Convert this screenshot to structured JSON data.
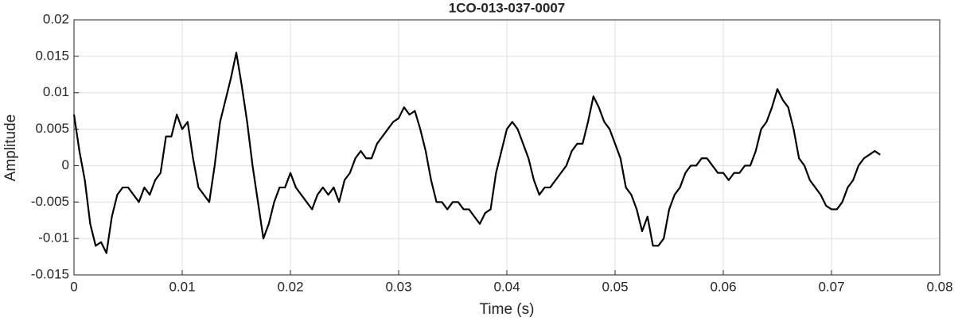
{
  "chart_data": {
    "type": "line",
    "title": "1CO-013-037-0007",
    "xlabel": "Time (s)",
    "ylabel": "Amplitude",
    "x": [
      0,
      0.0005,
      0.001,
      0.0015,
      0.002,
      0.0025,
      0.003,
      0.0035,
      0.004,
      0.0045,
      0.005,
      0.0055,
      0.006,
      0.0065,
      0.007,
      0.0075,
      0.008,
      0.0085,
      0.009,
      0.0095,
      0.01,
      0.0105,
      0.011,
      0.0115,
      0.012,
      0.0125,
      0.013,
      0.0135,
      0.014,
      0.0145,
      0.015,
      0.0155,
      0.016,
      0.0165,
      0.017,
      0.0175,
      0.018,
      0.0185,
      0.019,
      0.0195,
      0.02,
      0.0205,
      0.021,
      0.0215,
      0.022,
      0.0225,
      0.023,
      0.0235,
      0.024,
      0.0245,
      0.025,
      0.0255,
      0.026,
      0.0265,
      0.027,
      0.0275,
      0.028,
      0.0285,
      0.029,
      0.0295,
      0.03,
      0.0305,
      0.031,
      0.0315,
      0.032,
      0.0325,
      0.033,
      0.0335,
      0.034,
      0.0345,
      0.035,
      0.0355,
      0.036,
      0.0365,
      0.037,
      0.0375,
      0.038,
      0.0385,
      0.039,
      0.0395,
      0.04,
      0.0405,
      0.041,
      0.0415,
      0.042,
      0.0425,
      0.043,
      0.0435,
      0.044,
      0.0445,
      0.045,
      0.0455,
      0.046,
      0.0465,
      0.047,
      0.0475,
      0.048,
      0.0485,
      0.049,
      0.0495,
      0.05,
      0.0505,
      0.051,
      0.0515,
      0.052,
      0.0525,
      0.053,
      0.0535,
      0.054,
      0.0545,
      0.055,
      0.0555,
      0.056,
      0.0565,
      0.057,
      0.0575,
      0.058,
      0.0585,
      0.059,
      0.0595,
      0.06,
      0.0605,
      0.061,
      0.0615,
      0.062,
      0.0625,
      0.063,
      0.0635,
      0.064,
      0.0645,
      0.065,
      0.0655,
      0.066,
      0.0665,
      0.067,
      0.0675,
      0.068,
      0.0685,
      0.069,
      0.0695,
      0.07,
      0.0705,
      0.071,
      0.0715,
      0.072,
      0.0725,
      0.073,
      0.0735,
      0.074,
      0.0745
    ],
    "series": [
      {
        "color": "#000000",
        "values": [
          0.007,
          0.002,
          -0.002,
          -0.008,
          -0.011,
          -0.0105,
          -0.012,
          -0.007,
          -0.004,
          -0.003,
          -0.003,
          -0.004,
          -0.005,
          -0.003,
          -0.004,
          -0.002,
          -0.001,
          0.004,
          0.004,
          0.007,
          0.005,
          0.006,
          0.001,
          -0.003,
          -0.004,
          -0.005,
          0,
          0.006,
          0.009,
          0.012,
          0.0155,
          0.011,
          0.006,
          0,
          -0.005,
          -0.01,
          -0.008,
          -0.005,
          -0.003,
          -0.003,
          -0.001,
          -0.003,
          -0.004,
          -0.005,
          -0.006,
          -0.004,
          -0.003,
          -0.004,
          -0.003,
          -0.005,
          -0.002,
          -0.001,
          0.001,
          0.002,
          0.001,
          0.001,
          0.003,
          0.004,
          0.005,
          0.006,
          0.0065,
          0.008,
          0.007,
          0.0075,
          0.005,
          0.002,
          -0.002,
          -0.005,
          -0.005,
          -0.006,
          -0.005,
          -0.005,
          -0.006,
          -0.006,
          -0.007,
          -0.008,
          -0.0065,
          -0.006,
          -0.001,
          0.002,
          0.005,
          0.006,
          0.005,
          0.003,
          0.001,
          -0.002,
          -0.004,
          -0.003,
          -0.003,
          -0.002,
          -0.001,
          0,
          0.002,
          0.003,
          0.003,
          0.006,
          0.0095,
          0.008,
          0.006,
          0.005,
          0.003,
          0.001,
          -0.003,
          -0.004,
          -0.006,
          -0.009,
          -0.007,
          -0.011,
          -0.011,
          -0.01,
          -0.006,
          -0.004,
          -0.003,
          -0.001,
          0,
          0,
          0.001,
          0.001,
          0,
          -0.001,
          -0.001,
          -0.002,
          -0.001,
          -0.001,
          0,
          0,
          0.002,
          0.005,
          0.006,
          0.008,
          0.0105,
          0.009,
          0.008,
          0.005,
          0.001,
          0,
          -0.002,
          -0.003,
          -0.004,
          -0.0055,
          -0.006,
          -0.006,
          -0.005,
          -0.003,
          -0.002,
          0,
          0.001,
          0.0015,
          0.002,
          0.0015
        ]
      }
    ],
    "xlim": [
      0,
      0.08
    ],
    "xticks": [
      0,
      0.01,
      0.02,
      0.03,
      0.04,
      0.05,
      0.06,
      0.07,
      0.08
    ],
    "ylim": [
      -0.015,
      0.02
    ],
    "yticks": [
      -0.015,
      -0.01,
      -0.005,
      0,
      0.005,
      0.01,
      0.015,
      0.02
    ],
    "grid": true
  }
}
